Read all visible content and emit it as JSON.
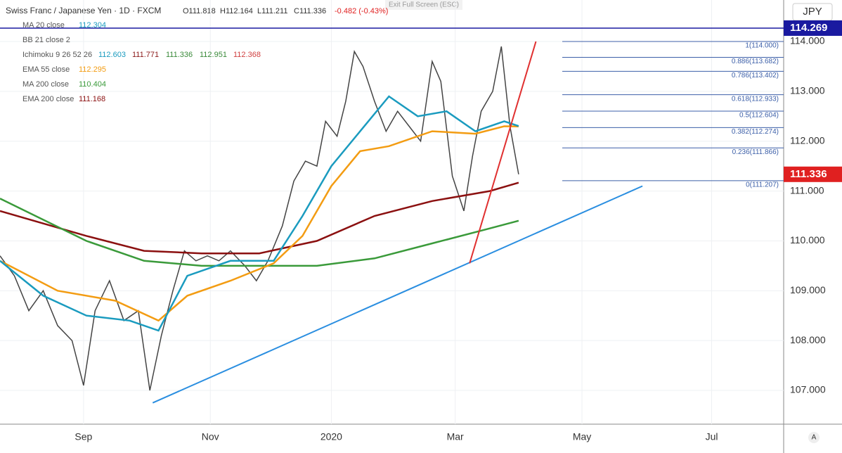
{
  "header": {
    "symbol": "Swiss Franc / Japanese Yen · 1D · FXCM",
    "open": "O111.818",
    "high": "H112.164",
    "low": "L111.211",
    "close": "C111.336",
    "change": "-0.482 (-0.43%)",
    "exit": "Exit Full Screen (ESC)",
    "currency": "JPY",
    "auto": "A"
  },
  "legend": [
    {
      "label": "MA 20 close",
      "value": "112.304",
      "color": "#1a9bbf"
    },
    {
      "label": "BB 21 close 2",
      "value": "",
      "color": "#999"
    },
    {
      "label": "Ichimoku 9 26 52 26",
      "values": [
        {
          "text": "112.603",
          "color": "#1a9bbf"
        },
        {
          "text": "111.771",
          "color": "#8b1a1a"
        },
        {
          "text": "111.336",
          "color": "#3a8a3a"
        },
        {
          "text": "112.951",
          "color": "#3a8a3a"
        },
        {
          "text": "112.368",
          "color": "#d04040"
        }
      ]
    },
    {
      "label": "EMA 55 close",
      "value": "112.295",
      "color": "#f39c12"
    },
    {
      "label": "MA 200 close",
      "value": "110.404",
      "color": "#3a9a3a"
    },
    {
      "label": "EMA 200 close",
      "value": "111.168",
      "color": "#8b1010"
    }
  ],
  "chart_data": {
    "type": "line",
    "xlim": [
      0,
      272
    ],
    "ylim": [
      106.323,
      114.833
    ],
    "xticks": [
      {
        "value": 29,
        "label": "Sep"
      },
      {
        "value": 73,
        "label": "Nov"
      },
      {
        "value": 115,
        "label": "2020"
      },
      {
        "value": 158,
        "label": "Mar"
      },
      {
        "value": 202,
        "label": "May"
      },
      {
        "value": 247,
        "label": "Jul"
      }
    ],
    "yticks": [
      {
        "value": 107,
        "label": "107.000"
      },
      {
        "value": 108,
        "label": "108.000"
      },
      {
        "value": 109,
        "label": "109.000"
      },
      {
        "value": 110,
        "label": "110.000"
      },
      {
        "value": 111,
        "label": "111.000"
      },
      {
        "value": 112,
        "label": "112.000"
      },
      {
        "value": 113,
        "label": "113.000"
      },
      {
        "value": 114,
        "label": "114.000"
      }
    ],
    "grid": true,
    "series": [
      {
        "name": "Close",
        "color": "#444444",
        "x": [
          0,
          5,
          10,
          15,
          20,
          25,
          29,
          33,
          38,
          43,
          48,
          52,
          56,
          60,
          64,
          68,
          72,
          76,
          80,
          85,
          89,
          93,
          98,
          102,
          106,
          110,
          113,
          117,
          120,
          123,
          126,
          130,
          134,
          138,
          142,
          146,
          150,
          153,
          157,
          161,
          164,
          167,
          171,
          174,
          177,
          180
        ],
        "values": [
          109.7,
          109.3,
          108.6,
          109.0,
          108.3,
          108.0,
          107.1,
          108.6,
          109.2,
          108.4,
          108.6,
          107.0,
          108.1,
          109.0,
          109.8,
          109.6,
          109.7,
          109.6,
          109.8,
          109.5,
          109.2,
          109.6,
          110.3,
          111.2,
          111.6,
          111.5,
          112.4,
          112.1,
          112.8,
          113.8,
          113.5,
          112.8,
          112.2,
          112.6,
          112.3,
          112.0,
          113.6,
          113.2,
          111.3,
          110.6,
          111.7,
          112.6,
          113.0,
          113.9,
          112.3,
          111.336
        ]
      },
      {
        "name": "EMA 200 close",
        "color": "#8b1010",
        "x": [
          0,
          30,
          50,
          70,
          90,
          110,
          130,
          150,
          170,
          180
        ],
        "values": [
          110.6,
          110.1,
          109.8,
          109.75,
          109.75,
          110.0,
          110.5,
          110.8,
          111.0,
          111.168
        ]
      },
      {
        "name": "MA 200 close",
        "color": "#3a9a3a",
        "x": [
          0,
          30,
          50,
          70,
          90,
          110,
          130,
          150,
          170,
          180
        ],
        "values": [
          110.85,
          110.0,
          109.6,
          109.5,
          109.5,
          109.5,
          109.65,
          109.95,
          110.25,
          110.404
        ]
      },
      {
        "name": "EMA 55 close",
        "color": "#f39c12",
        "x": [
          0,
          20,
          40,
          55,
          65,
          80,
          95,
          105,
          115,
          125,
          135,
          150,
          165,
          175,
          180
        ],
        "values": [
          109.6,
          109.0,
          108.8,
          108.4,
          108.9,
          109.2,
          109.55,
          110.1,
          111.1,
          111.8,
          111.9,
          112.2,
          112.15,
          112.3,
          112.295
        ]
      },
      {
        "name": "MA 20 close",
        "color": "#1a9bbf",
        "x": [
          0,
          15,
          30,
          45,
          55,
          65,
          80,
          95,
          105,
          115,
          125,
          135,
          145,
          155,
          165,
          175,
          180
        ],
        "values": [
          109.6,
          108.9,
          108.5,
          108.4,
          108.2,
          109.3,
          109.6,
          109.6,
          110.5,
          111.5,
          112.2,
          112.9,
          112.5,
          112.6,
          112.2,
          112.4,
          112.304
        ]
      }
    ],
    "trendlines": [
      {
        "color": "#2a8ee0",
        "x": [
          53,
          223
        ],
        "values": [
          106.75,
          111.1
        ]
      },
      {
        "color": "#e03030",
        "x": [
          163,
          186
        ],
        "values": [
          109.55,
          114.0
        ]
      }
    ],
    "fib": [
      {
        "value": 114.0,
        "label": "1(114.000)"
      },
      {
        "value": 113.682,
        "label": "0.886(113.682)"
      },
      {
        "value": 113.402,
        "label": "0.786(113.402)"
      },
      {
        "value": 112.933,
        "label": "0.618(112.933)"
      },
      {
        "value": 112.604,
        "label": "0.5(112.604)"
      },
      {
        "value": 112.274,
        "label": "0.382(112.274)"
      },
      {
        "value": 111.866,
        "label": "0.236(111.866)"
      },
      {
        "value": 111.207,
        "label": "0(111.207)"
      }
    ],
    "price_lines": [
      {
        "value": 114.269,
        "label": "114.269",
        "color": "#1a1aa0"
      },
      {
        "value": 111.336,
        "label": "111.336",
        "color": "#e02020"
      }
    ]
  }
}
